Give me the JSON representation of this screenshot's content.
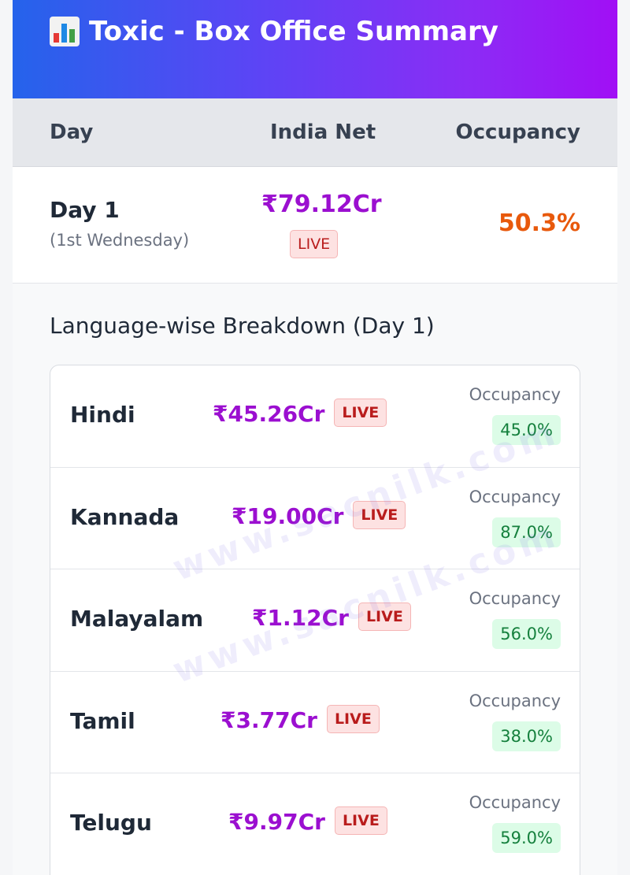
{
  "header": {
    "icon": "bar-chart-icon",
    "title": "Toxic - Box Office Summary"
  },
  "columns": {
    "day": "Day",
    "net": "India Net",
    "occupancy": "Occupancy"
  },
  "day_row": {
    "label": "Day 1",
    "sublabel": "(1st Wednesday)",
    "net": "₹79.12Cr",
    "badge": "LIVE",
    "occupancy": "50.3%"
  },
  "breakdown": {
    "title": "Language-wise Breakdown (Day 1)",
    "occupancy_label": "Occupancy",
    "badge": "LIVE",
    "rows": [
      {
        "language": "Hindi",
        "net": "₹45.26Cr",
        "occupancy": "45.0%"
      },
      {
        "language": "Kannada",
        "net": "₹19.00Cr",
        "occupancy": "87.0%"
      },
      {
        "language": "Malayalam",
        "net": "₹1.12Cr",
        "occupancy": "56.0%"
      },
      {
        "language": "Tamil",
        "net": "₹3.77Cr",
        "occupancy": "38.0%"
      },
      {
        "language": "Telugu",
        "net": "₹9.97Cr",
        "occupancy": "59.0%"
      }
    ]
  },
  "watermark": "www.sacnilk.com",
  "colors": {
    "accent_net": "#9b0fd0",
    "occupancy_orange": "#e8590c",
    "live_red": "#b91c1c",
    "occupancy_green": "#15803d"
  }
}
